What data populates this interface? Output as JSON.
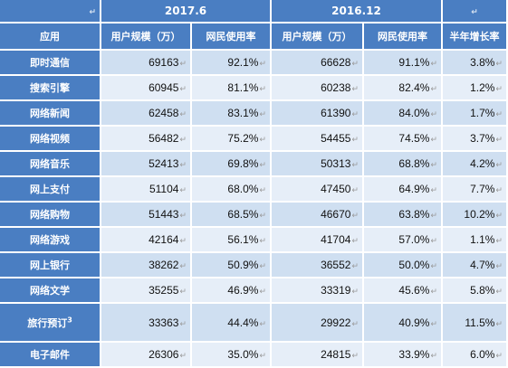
{
  "header": {
    "corner_mark": "↵",
    "period_a": "2017.6",
    "period_b": "2016.12",
    "growth_mark": "↵",
    "col_app": "应用",
    "col_users_a": "用户规模（万）",
    "col_rate_a": "网民使用率",
    "col_users_b": "用户规模（万）",
    "col_rate_b": "网民使用率",
    "col_growth": "半年增长率"
  },
  "mark": "↵",
  "rows": [
    {
      "app": "即时通信",
      "sup": "",
      "users_a": "69163",
      "rate_a": "92.1%",
      "users_b": "66628",
      "rate_b": "91.1%",
      "growth": "3.8%"
    },
    {
      "app": "搜索引擎",
      "sup": "",
      "users_a": "60945",
      "rate_a": "81.1%",
      "users_b": "60238",
      "rate_b": "82.4%",
      "growth": "1.2%"
    },
    {
      "app": "网络新闻",
      "sup": "",
      "users_a": "62458",
      "rate_a": "83.1%",
      "users_b": "61390",
      "rate_b": "84.0%",
      "growth": "1.7%"
    },
    {
      "app": "网络视频",
      "sup": "",
      "users_a": "56482",
      "rate_a": "75.2%",
      "users_b": "54455",
      "rate_b": "74.5%",
      "growth": "3.7%"
    },
    {
      "app": "网络音乐",
      "sup": "",
      "users_a": "52413",
      "rate_a": "69.8%",
      "users_b": "50313",
      "rate_b": "68.8%",
      "growth": "4.2%"
    },
    {
      "app": "网上支付",
      "sup": "",
      "users_a": "51104",
      "rate_a": "68.0%",
      "users_b": "47450",
      "rate_b": "64.9%",
      "growth": "7.7%"
    },
    {
      "app": "网络购物",
      "sup": "",
      "users_a": "51443",
      "rate_a": "68.5%",
      "users_b": "46670",
      "rate_b": "63.8%",
      "growth": "10.2%"
    },
    {
      "app": "网络游戏",
      "sup": "",
      "users_a": "42164",
      "rate_a": "56.1%",
      "users_b": "41704",
      "rate_b": "57.0%",
      "growth": "1.1%"
    },
    {
      "app": "网上银行",
      "sup": "",
      "users_a": "38262",
      "rate_a": "50.9%",
      "users_b": "36552",
      "rate_b": "50.0%",
      "growth": "4.7%"
    },
    {
      "app": "网络文学",
      "sup": "",
      "users_a": "35255",
      "rate_a": "46.9%",
      "users_b": "33319",
      "rate_b": "45.6%",
      "growth": "5.8%"
    },
    {
      "app": "旅行预订",
      "sup": "3",
      "users_a": "33363",
      "rate_a": "44.4%",
      "users_b": "29922",
      "rate_b": "40.9%",
      "growth": "11.5%"
    },
    {
      "app": "电子邮件",
      "sup": "",
      "users_a": "26306",
      "rate_a": "35.0%",
      "users_b": "24815",
      "rate_b": "33.9%",
      "growth": "6.0%"
    }
  ]
}
